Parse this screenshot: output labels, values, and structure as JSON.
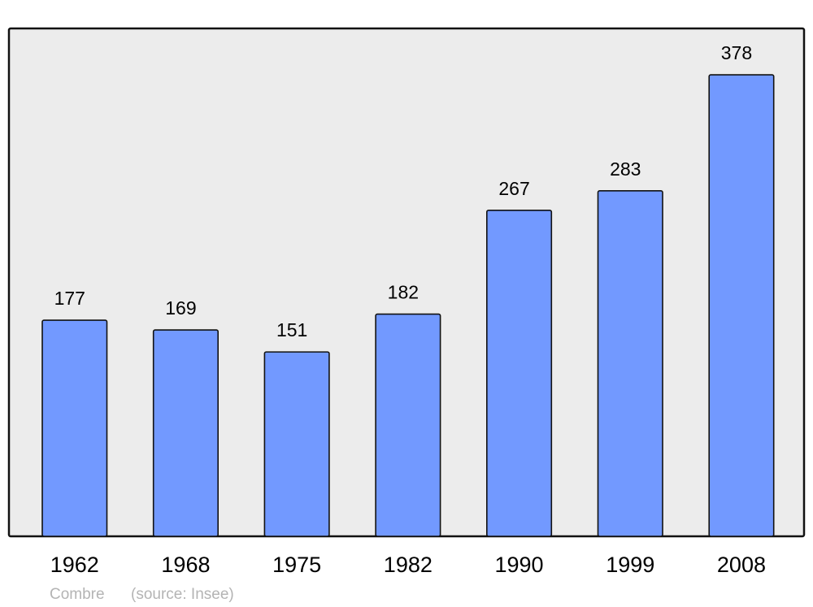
{
  "chart_data": {
    "type": "bar",
    "categories": [
      "1962",
      "1968",
      "1975",
      "1982",
      "1990",
      "1999",
      "2008"
    ],
    "values": [
      177,
      169,
      151,
      182,
      267,
      283,
      378
    ],
    "title": "",
    "xlabel": "",
    "ylabel": "",
    "ylim": [
      0,
      416
    ],
    "grid": false,
    "bar_color": "#7299ff",
    "plot_background": "#ececec"
  },
  "footer": {
    "place": "Combre",
    "source": "(source: Insee)"
  }
}
